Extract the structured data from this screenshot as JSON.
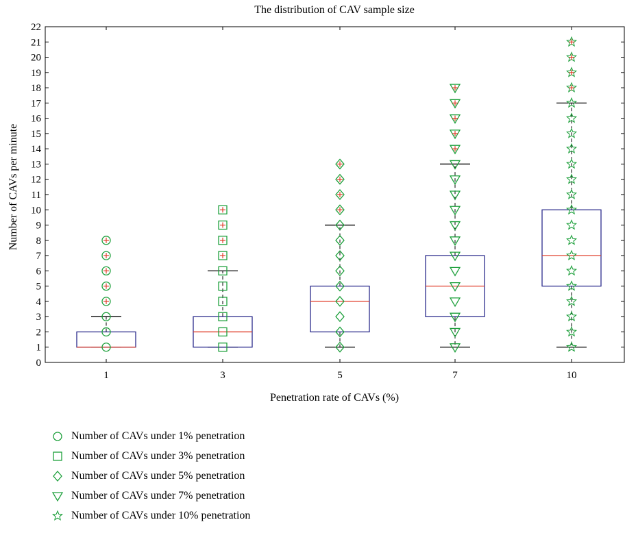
{
  "chart_data": {
    "type": "box",
    "title": "The distribution of CAV sample size",
    "xlabel": "Penetration rate of CAVs (%)",
    "ylabel": "Number of CAVs per minute",
    "ylim": [
      0,
      22
    ],
    "yticks": [
      0,
      1,
      2,
      3,
      4,
      5,
      6,
      7,
      8,
      9,
      10,
      11,
      12,
      13,
      14,
      15,
      16,
      17,
      18,
      19,
      20,
      21,
      22
    ],
    "categories": [
      "1",
      "3",
      "5",
      "7",
      "10"
    ],
    "boxes": [
      {
        "category": "1",
        "q1": 1,
        "median": 1,
        "q3": 2,
        "whisker_low": 1,
        "whisker_high": 3,
        "outliers": [
          4,
          5,
          6,
          7,
          8
        ]
      },
      {
        "category": "3",
        "q1": 1,
        "median": 2,
        "q3": 3,
        "whisker_low": 1,
        "whisker_high": 6,
        "outliers": [
          7,
          8,
          9,
          10
        ]
      },
      {
        "category": "5",
        "q1": 2,
        "median": 4,
        "q3": 5,
        "whisker_low": 1,
        "whisker_high": 9,
        "outliers": [
          10,
          11,
          12,
          13
        ]
      },
      {
        "category": "7",
        "q1": 3,
        "median": 5,
        "q3": 7,
        "whisker_low": 1,
        "whisker_high": 13,
        "outliers": [
          14,
          15,
          16,
          17,
          18
        ]
      },
      {
        "category": "10",
        "q1": 5,
        "median": 7,
        "q3": 10,
        "whisker_low": 1,
        "whisker_high": 17,
        "outliers": [
          18,
          19,
          20,
          21
        ]
      }
    ],
    "samples": [
      {
        "category": "1",
        "marker": "circle",
        "values": [
          1,
          2,
          3,
          4,
          5,
          6,
          7,
          8
        ]
      },
      {
        "category": "3",
        "marker": "square",
        "values": [
          1,
          2,
          3,
          4,
          5,
          6,
          7,
          8,
          9,
          10
        ]
      },
      {
        "category": "5",
        "marker": "diamond",
        "values": [
          1,
          2,
          3,
          4,
          5,
          6,
          7,
          8,
          9,
          10,
          11,
          12,
          13
        ]
      },
      {
        "category": "7",
        "marker": "triangle",
        "values": [
          1,
          2,
          3,
          4,
          5,
          6,
          7,
          8,
          9,
          10,
          11,
          12,
          13,
          14,
          15,
          16,
          17,
          18
        ]
      },
      {
        "category": "10",
        "marker": "star",
        "values": [
          1,
          2,
          3,
          4,
          5,
          6,
          7,
          8,
          9,
          10,
          11,
          12,
          13,
          14,
          15,
          16,
          17,
          18,
          19,
          20,
          21
        ]
      }
    ],
    "legend": [
      {
        "label": "Number of CAVs under 1% penetration",
        "marker": "circle"
      },
      {
        "label": "Number of CAVs under 3% penetration",
        "marker": "square"
      },
      {
        "label": "Number of CAVs under 5% penetration",
        "marker": "diamond"
      },
      {
        "label": "Number of CAVs under 7% penetration",
        "marker": "triangle"
      },
      {
        "label": "Number of CAVs under 10% penetration",
        "marker": "star"
      }
    ],
    "legend_position": "bottom-left",
    "grid": false,
    "colors": {
      "box": "#2b2b8c",
      "median": "#e03c28",
      "marker": "#1ea03c",
      "outlier_plus": "#e03c28",
      "whisker": "#000000"
    }
  }
}
